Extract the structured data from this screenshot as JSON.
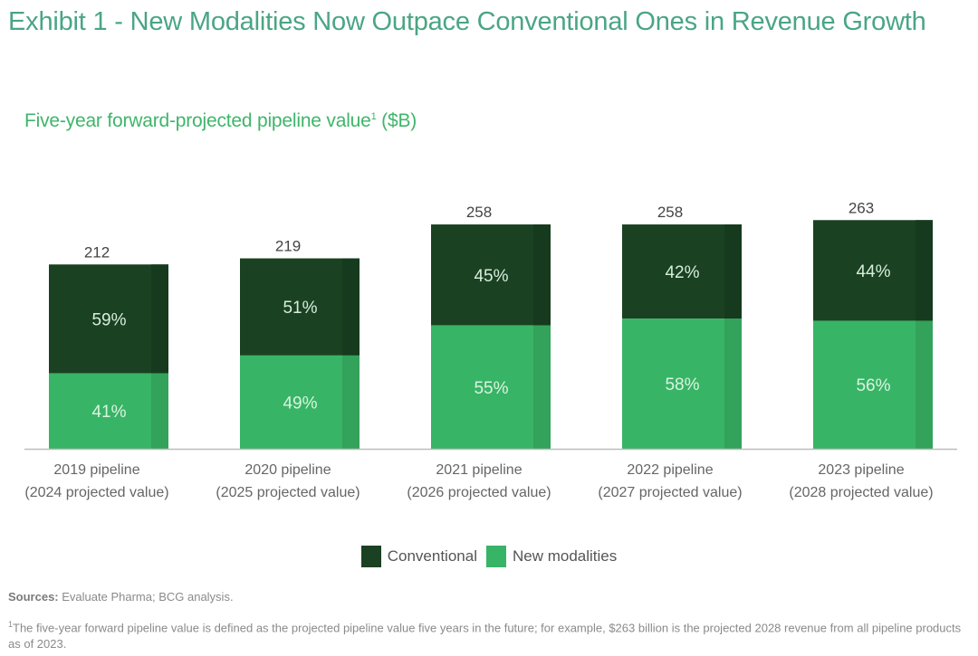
{
  "title": "Exhibit 1 - New Modalities Now Outpace Conventional Ones in Revenue Growth",
  "subtitle_text": "Five-year forward-projected pipeline value",
  "subtitle_sup": "1",
  "subtitle_unit": " ($B)",
  "colors": {
    "conventional": "#1a4122",
    "conventional_shade": "#163a1d",
    "new_modalities": "#38b466",
    "new_modalities_shade": "#33a25b",
    "title": "#4aa585"
  },
  "legend": [
    {
      "label": "Conventional",
      "color": "#1a4122"
    },
    {
      "label": "New modalities",
      "color": "#38b466"
    }
  ],
  "sources_label": "Sources:",
  "sources_text": " Evaluate Pharma; BCG analysis.",
  "footnote_sup": "1",
  "footnote_text": "The five-year forward pipeline value is defined as the projected pipeline value five years in the future; for example, $263 billion is the projected 2028 revenue from all pipeline products as of 2023.",
  "chart_data": {
    "type": "bar",
    "stacked": true,
    "title": "Five-year forward-projected pipeline value¹ ($B)",
    "xlabel": "",
    "ylabel": "",
    "ylim": [
      0,
      263
    ],
    "grid": false,
    "legend_position": "bottom-center",
    "categories": [
      [
        "2019 pipeline",
        "(2024 projected value)"
      ],
      [
        "2020 pipeline",
        "(2025 projected value)"
      ],
      [
        "2021 pipeline",
        "(2026 projected value)"
      ],
      [
        "2022 pipeline",
        "(2027 projected value)"
      ],
      [
        "2023 pipeline",
        "(2028 projected value)"
      ]
    ],
    "totals": [
      212,
      219,
      258,
      258,
      263
    ],
    "series": [
      {
        "name": "New modalities",
        "percent": [
          41,
          49,
          55,
          58,
          56
        ],
        "labels": [
          "41%",
          "49%",
          "55%",
          "58%",
          "56%"
        ]
      },
      {
        "name": "Conventional",
        "percent": [
          59,
          51,
          45,
          42,
          44
        ],
        "labels": [
          "59%",
          "51%",
          "45%",
          "42%",
          "44%"
        ]
      }
    ]
  }
}
